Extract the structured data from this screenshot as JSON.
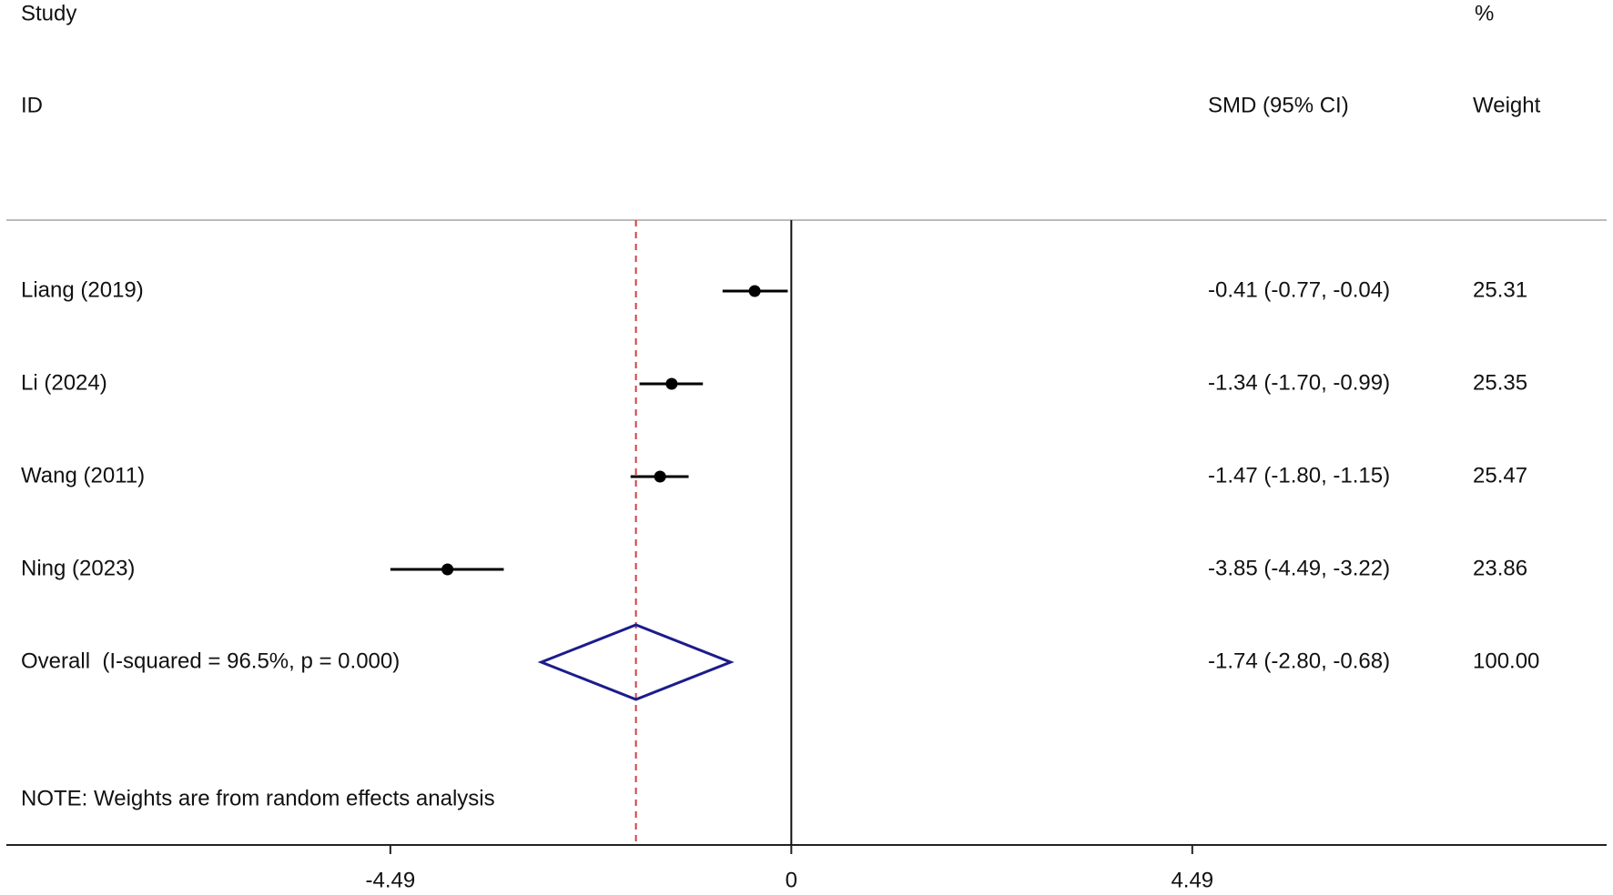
{
  "chart_data": {
    "type": "forest",
    "study_header": "Study",
    "id_header": "ID",
    "effect_header": "SMD (95% CI)",
    "weight_header_top": "%",
    "weight_header": "Weight",
    "studies": [
      {
        "name": "Liang (2019)",
        "value": -0.41,
        "lower": -0.77,
        "upper": -0.04,
        "ci_label": "-0.41 (-0.77, -0.04)",
        "weight": "25.31"
      },
      {
        "name": "Li (2024)",
        "value": -1.34,
        "lower": -1.7,
        "upper": -0.99,
        "ci_label": "-1.34 (-1.70, -0.99)",
        "weight": "25.35"
      },
      {
        "name": "Wang (2011)",
        "value": -1.47,
        "lower": -1.8,
        "upper": -1.15,
        "ci_label": "-1.47 (-1.80, -1.15)",
        "weight": "25.47"
      },
      {
        "name": "Ning (2023)",
        "value": -3.85,
        "lower": -4.49,
        "upper": -3.22,
        "ci_label": "-3.85 (-4.49, -3.22)",
        "weight": "23.86"
      }
    ],
    "overall": {
      "name": "Overall  (I-squared = 96.5%, p = 0.000)",
      "value": -1.74,
      "lower": -2.8,
      "upper": -0.68,
      "ci_label": "-1.74 (-2.80, -0.68)",
      "weight": "100.00"
    },
    "note": "NOTE: Weights are from random effects analysis",
    "null_line": 0,
    "xlim": [
      -8.79,
      9.13
    ],
    "xticks": [
      -4.49,
      0,
      4.49
    ],
    "marker_color": "#000000",
    "diamond_color": "#1c1c8c",
    "overall_line_color": "#d04040"
  }
}
